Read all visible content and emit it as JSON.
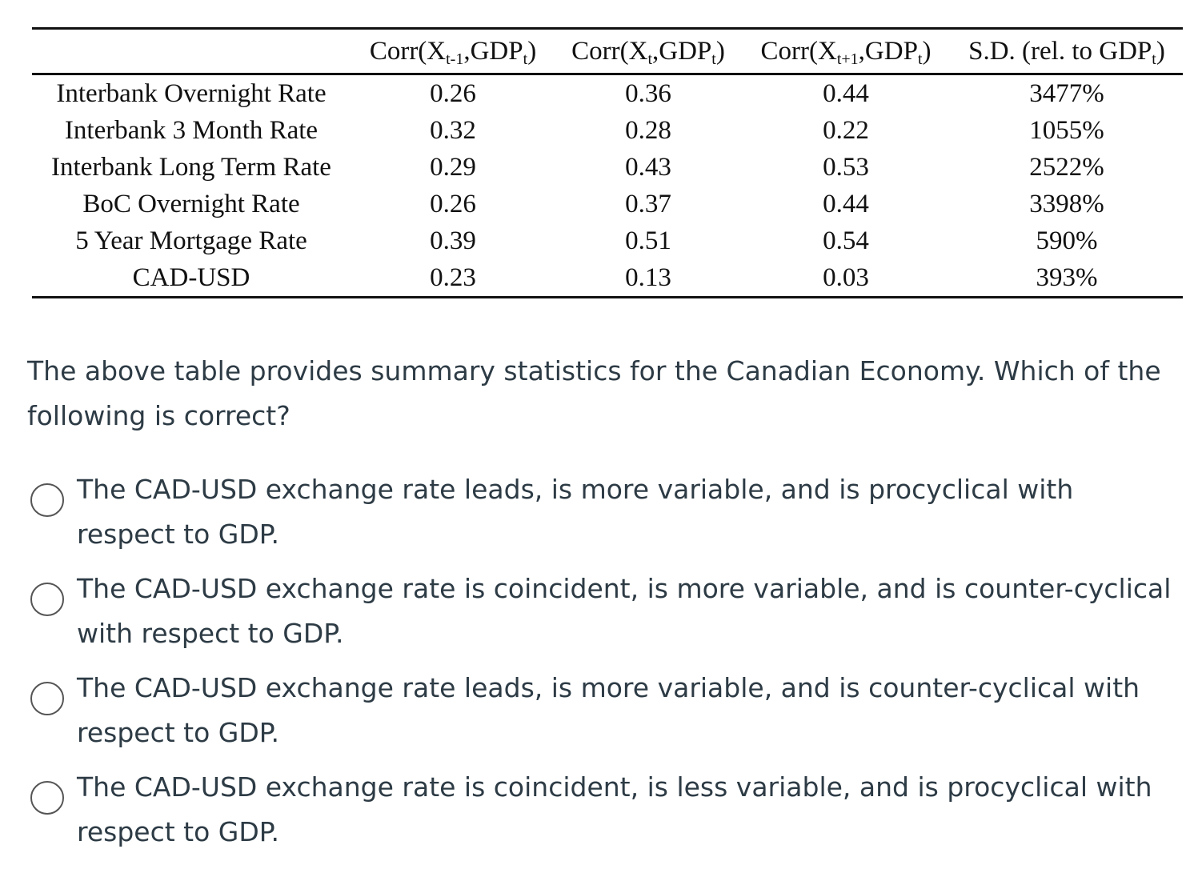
{
  "table": {
    "headers": {
      "lag": {
        "prefix": "Corr(X",
        "sub1": "t-1",
        "mid": ",GDP",
        "sub2": "t",
        "suffix": ")"
      },
      "coincident": {
        "prefix": "Corr(X",
        "sub1": "t",
        "mid": ",GDP",
        "sub2": "t",
        "suffix": ")"
      },
      "lead": {
        "prefix": "Corr(X",
        "sub1": "t+1",
        "mid": ",GDP",
        "sub2": "t",
        "suffix": ")"
      },
      "sd": {
        "prefix": "S.D. (rel. to GDP",
        "sub": "t",
        "suffix": ")"
      }
    },
    "rows": [
      {
        "label": "Interbank Overnight Rate",
        "lag": "0.26",
        "coincident": "0.36",
        "lead": "0.44",
        "sd": "3477%"
      },
      {
        "label": "Interbank 3 Month Rate",
        "lag": "0.32",
        "coincident": "0.28",
        "lead": "0.22",
        "sd": "1055%"
      },
      {
        "label": "Interbank Long Term Rate",
        "lag": "0.29",
        "coincident": "0.43",
        "lead": "0.53",
        "sd": "2522%"
      },
      {
        "label": "BoC Overnight Rate",
        "lag": "0.26",
        "coincident": "0.37",
        "lead": "0.44",
        "sd": "3398%"
      },
      {
        "label": "5 Year Mortgage Rate",
        "lag": "0.39",
        "coincident": "0.51",
        "lead": "0.54",
        "sd": "590%"
      },
      {
        "label": "CAD-USD",
        "lag": "0.23",
        "coincident": "0.13",
        "lead": "0.03",
        "sd": "393%"
      }
    ]
  },
  "question": {
    "text": "The above table provides summary statistics for the Canadian Economy. Which of the following is correct?"
  },
  "options": [
    {
      "text": "The CAD-USD exchange rate leads, is more variable, and is procyclical with respect to GDP.",
      "selected": false
    },
    {
      "text": "The CAD-USD exchange rate is coincident, is more variable, and is counter-cyclical with respect to GDP.",
      "selected": false
    },
    {
      "text": "The CAD-USD exchange rate leads, is more variable, and is counter-cyclical with respect to GDP.",
      "selected": false
    },
    {
      "text": "The CAD-USD exchange rate is coincident, is less variable, and is procyclical with respect to GDP.",
      "selected": false
    }
  ]
}
